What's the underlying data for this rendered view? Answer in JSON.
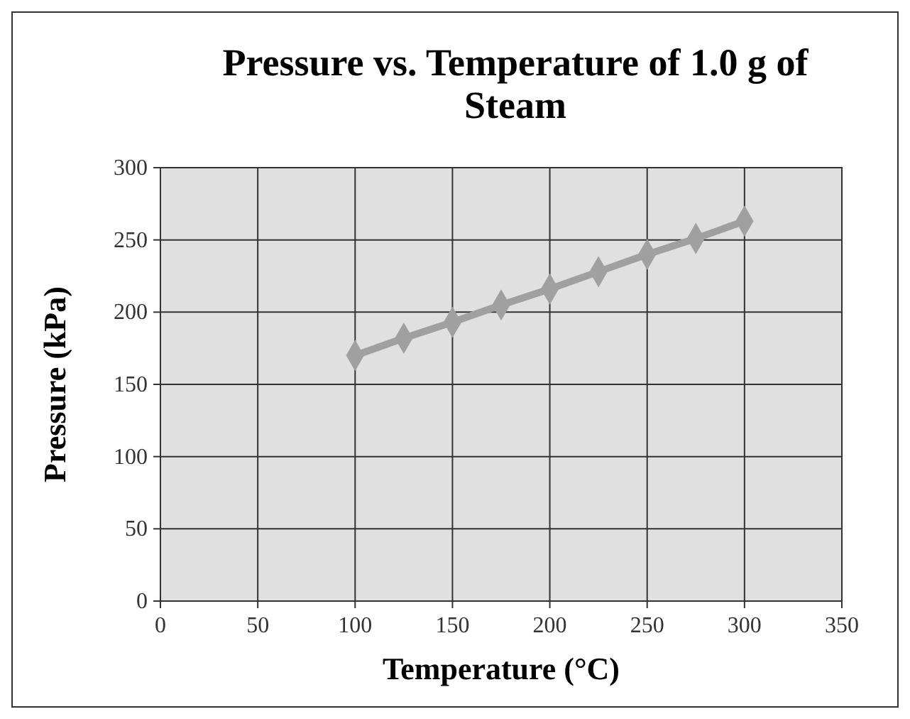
{
  "chart_data": {
    "type": "line",
    "title": "Pressure vs. Temperature of 1.0 g of Steam",
    "xlabel": "Temperature (°C)",
    "ylabel": "Pressure (kPa)",
    "x": [
      100,
      125,
      150,
      175,
      200,
      225,
      250,
      275,
      300
    ],
    "series": [
      {
        "color": "#a0a0a0",
        "values": [
          170,
          182,
          193,
          205,
          216,
          228,
          240,
          251,
          263
        ]
      }
    ],
    "xlim": [
      0,
      350
    ],
    "xticks": [
      0,
      50,
      100,
      150,
      200,
      250,
      300,
      350
    ],
    "ylim": [
      0,
      300
    ],
    "yticks": [
      0,
      50,
      100,
      150,
      200,
      250,
      300
    ],
    "grid": true,
    "marker": "diamond",
    "line_style": "solid"
  }
}
